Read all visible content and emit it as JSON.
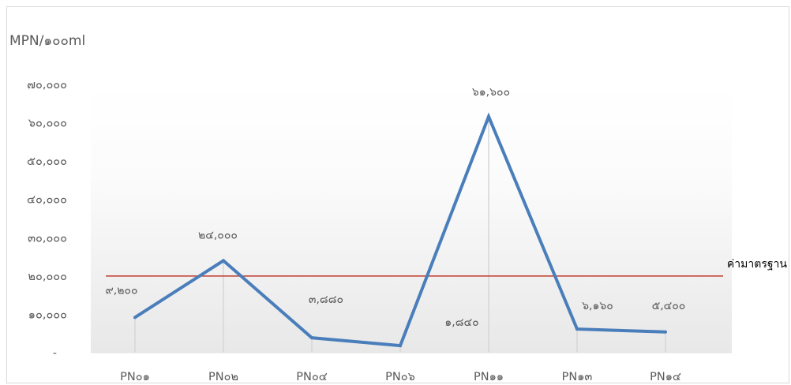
{
  "chart_data": {
    "type": "line",
    "ylabel": "MPN/๑๐๐ml",
    "categories": [
      "PN๐๑",
      "PN๐๒",
      "PN๐๔",
      "PN๐๖",
      "PN๑๑",
      "PN๑๓",
      "PN๑๔"
    ],
    "series": [
      {
        "values": [
          9200,
          24000,
          3880,
          1840,
          61600,
          6160,
          5400
        ],
        "data_labels": [
          "๙,๒๐๐",
          "๒๔,๐๐๐",
          "๓,๘๘๐",
          "๑,๘๔๐",
          "๖๑,๖๐๐",
          "๖,๑๖๐",
          "๕,๔๐๐"
        ],
        "color": "#4a7ebb"
      }
    ],
    "reference_line": {
      "name": "ค่ามาตรฐาน",
      "value": 20000,
      "color": "#c0392b"
    },
    "ylim": [
      0,
      70000
    ],
    "yticks": [
      0,
      10000,
      20000,
      30000,
      40000,
      50000,
      60000,
      70000
    ],
    "ytick_labels": [
      "-",
      "๑๐,๐๐๐",
      "๒๐,๐๐๐",
      "๓๐,๐๐๐",
      "๔๐,๐๐๐",
      "๕๐,๐๐๐",
      "๖๐,๐๐๐",
      "๗๐,๐๐๐"
    ],
    "grid": false,
    "drop_lines": true
  }
}
